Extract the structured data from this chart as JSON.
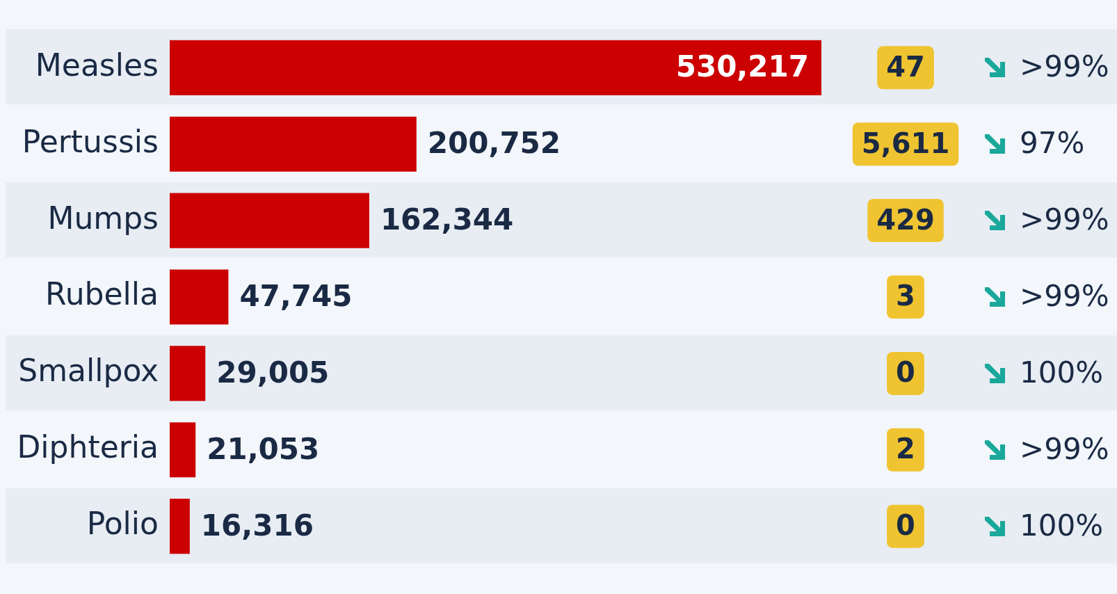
{
  "chart_data": {
    "type": "bar",
    "orientation": "horizontal",
    "categories": [
      "Measles",
      "Pertussis",
      "Mumps",
      "Rubella",
      "Smallpox",
      "Diphteria",
      "Polio"
    ],
    "values": [
      530217,
      200752,
      162344,
      47745,
      29005,
      21053,
      16316
    ],
    "value_labels": [
      "530,217",
      "200,752",
      "162,344",
      "47,745",
      "29,005",
      "21,053",
      "16,316"
    ],
    "color": "#cc0000",
    "legend": false,
    "annotations": [
      "47",
      ">99%",
      "5,611",
      "97%",
      "429",
      ">99%",
      "3",
      ">99%",
      "0",
      "100%",
      "2",
      ">99%",
      "0",
      "100%"
    ]
  }
}
